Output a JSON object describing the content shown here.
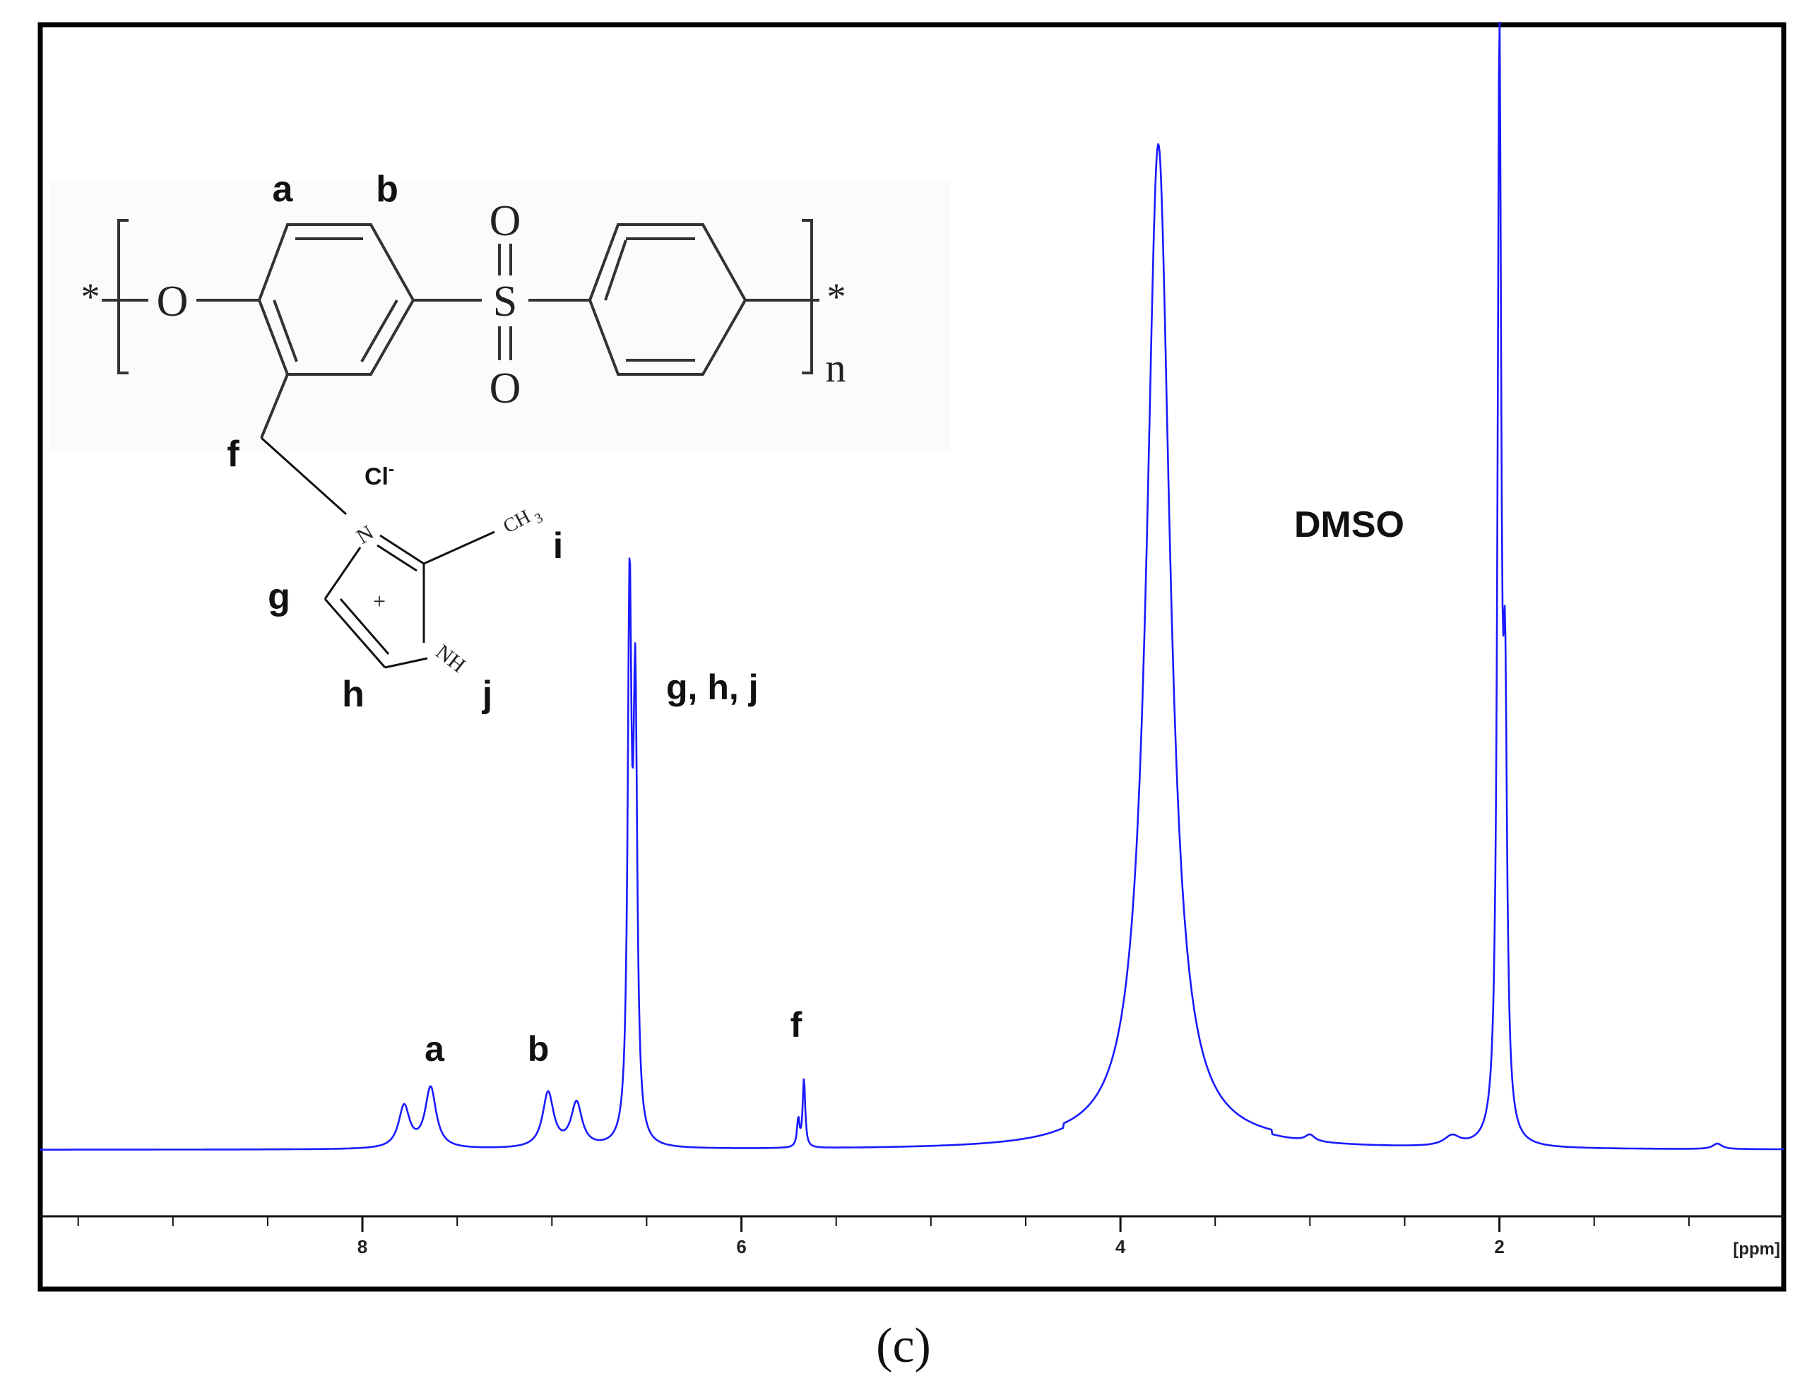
{
  "chart_data": {
    "type": "line",
    "title": "",
    "xlabel": "[ppm]",
    "ylabel": "",
    "x_reversed": true,
    "xlim": [
      9.7,
      0.5
    ],
    "ticks": [
      "8",
      "6",
      "4",
      "2"
    ],
    "tick_values": [
      8,
      6,
      4,
      2
    ],
    "line_color": "#1a1aff",
    "grid": false,
    "peaks": [
      {
        "ppm": 7.78,
        "height": 0.038,
        "width": 0.035,
        "label": "a"
      },
      {
        "ppm": 7.64,
        "height": 0.055,
        "width": 0.035,
        "label": "a"
      },
      {
        "ppm": 7.02,
        "height": 0.05,
        "width": 0.035,
        "label": "b"
      },
      {
        "ppm": 6.87,
        "height": 0.04,
        "width": 0.035,
        "label": "b"
      },
      {
        "ppm": 6.59,
        "height": 0.49,
        "width": 0.012,
        "label": "g, h, j"
      },
      {
        "ppm": 6.56,
        "height": 0.39,
        "width": 0.012,
        "label": "g, h, j"
      },
      {
        "ppm": 5.7,
        "height": 0.025,
        "width": 0.008,
        "label": "f"
      },
      {
        "ppm": 5.67,
        "height": 0.062,
        "width": 0.008,
        "label": "f"
      },
      {
        "ppm": 3.8,
        "height": 0.91,
        "width": 0.075,
        "label": ""
      },
      {
        "ppm": 3.0,
        "height": 0.006,
        "width": 0.03,
        "label": ""
      },
      {
        "ppm": 2.25,
        "height": 0.009,
        "width": 0.05,
        "label": ""
      },
      {
        "ppm": 2.0,
        "height": 0.98,
        "width": 0.012,
        "label": "DMSO"
      },
      {
        "ppm": 1.97,
        "height": 0.35,
        "width": 0.012,
        "label": "DMSO"
      },
      {
        "ppm": 0.85,
        "height": 0.005,
        "width": 0.03,
        "label": ""
      }
    ],
    "annotations": [
      "a",
      "b",
      "g, h, j",
      "f",
      "DMSO"
    ]
  },
  "structure": {
    "atoms": {
      "star_left": "*",
      "star_right": "*",
      "oxygen_ether": "O",
      "sulfur": "S",
      "oxygen_top": "O",
      "oxygen_bottom": "O",
      "subscript_n": "n",
      "n_imidazolium": "N",
      "nh": "NH",
      "ch3": "CH",
      "ch3_sub": "3",
      "plus": "+",
      "chloride": "Cl",
      "chloride_sup": "-"
    },
    "labels": {
      "a": "a",
      "b": "b",
      "f": "f",
      "g": "g",
      "h": "h",
      "i": "i",
      "j": "j"
    }
  },
  "caption": "(c)"
}
